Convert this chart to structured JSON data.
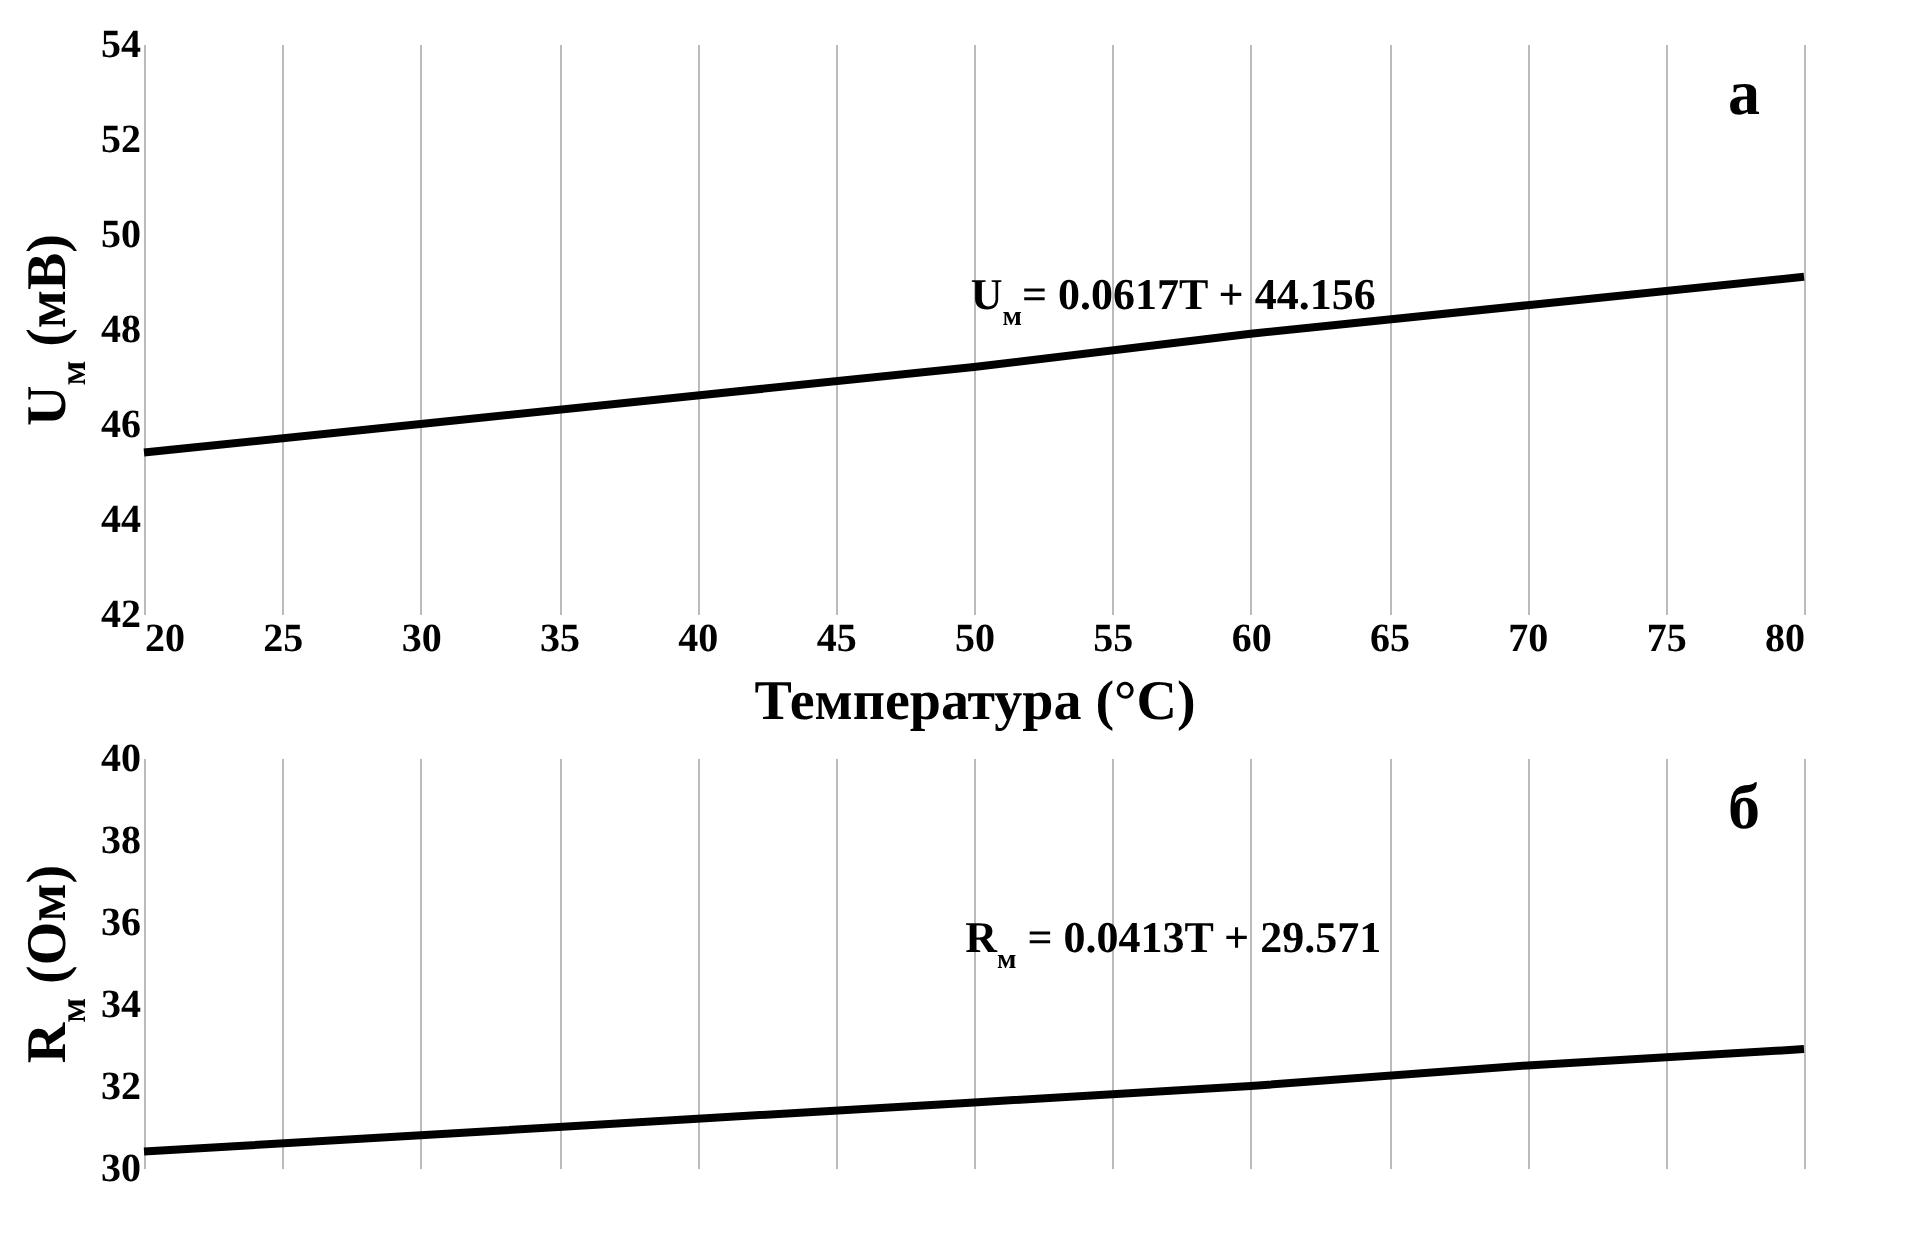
{
  "chart_data": [
    {
      "type": "line",
      "x": [
        20,
        30,
        40,
        50,
        60,
        70,
        80
      ],
      "series": [
        {
          "color": "#000000",
          "values": [
            45.4,
            46.0,
            46.6,
            47.2,
            47.9,
            48.5,
            49.1
          ]
        }
      ],
      "xlim": [
        20,
        80
      ],
      "xticks": [
        20,
        25,
        30,
        35,
        40,
        45,
        50,
        55,
        60,
        65,
        70,
        75,
        80
      ],
      "ylim": [
        42,
        54
      ],
      "yticks": [
        42,
        44,
        46,
        48,
        50,
        52,
        54
      ],
      "xlabel": "Температура (°C)",
      "ylabel": "U$_{м}$  (мВ)",
      "grid": "x",
      "annotations": [
        "а",
        "U$_{м}$= 0.0617T + 44.156"
      ]
    },
    {
      "type": "line",
      "x": [
        20,
        30,
        40,
        50,
        60,
        70,
        80
      ],
      "series": [
        {
          "color": "#000000",
          "values": [
            30.4,
            30.8,
            31.2,
            31.6,
            32.0,
            32.5,
            32.9
          ]
        }
      ],
      "xlim": [
        20,
        80
      ],
      "xticks": [
        20,
        25,
        30,
        35,
        40,
        45,
        50,
        55,
        60,
        65,
        70,
        75,
        80
      ],
      "ylim": [
        30,
        40
      ],
      "yticks": [
        30,
        32,
        34,
        36,
        38,
        40
      ],
      "ylabel": "R$_{м}$ (Ом)",
      "grid": "x",
      "tick_labels": "y",
      "annotations": [
        "б",
        "R$_{м}$ = 0.0413T + 29.571"
      ]
    }
  ]
}
